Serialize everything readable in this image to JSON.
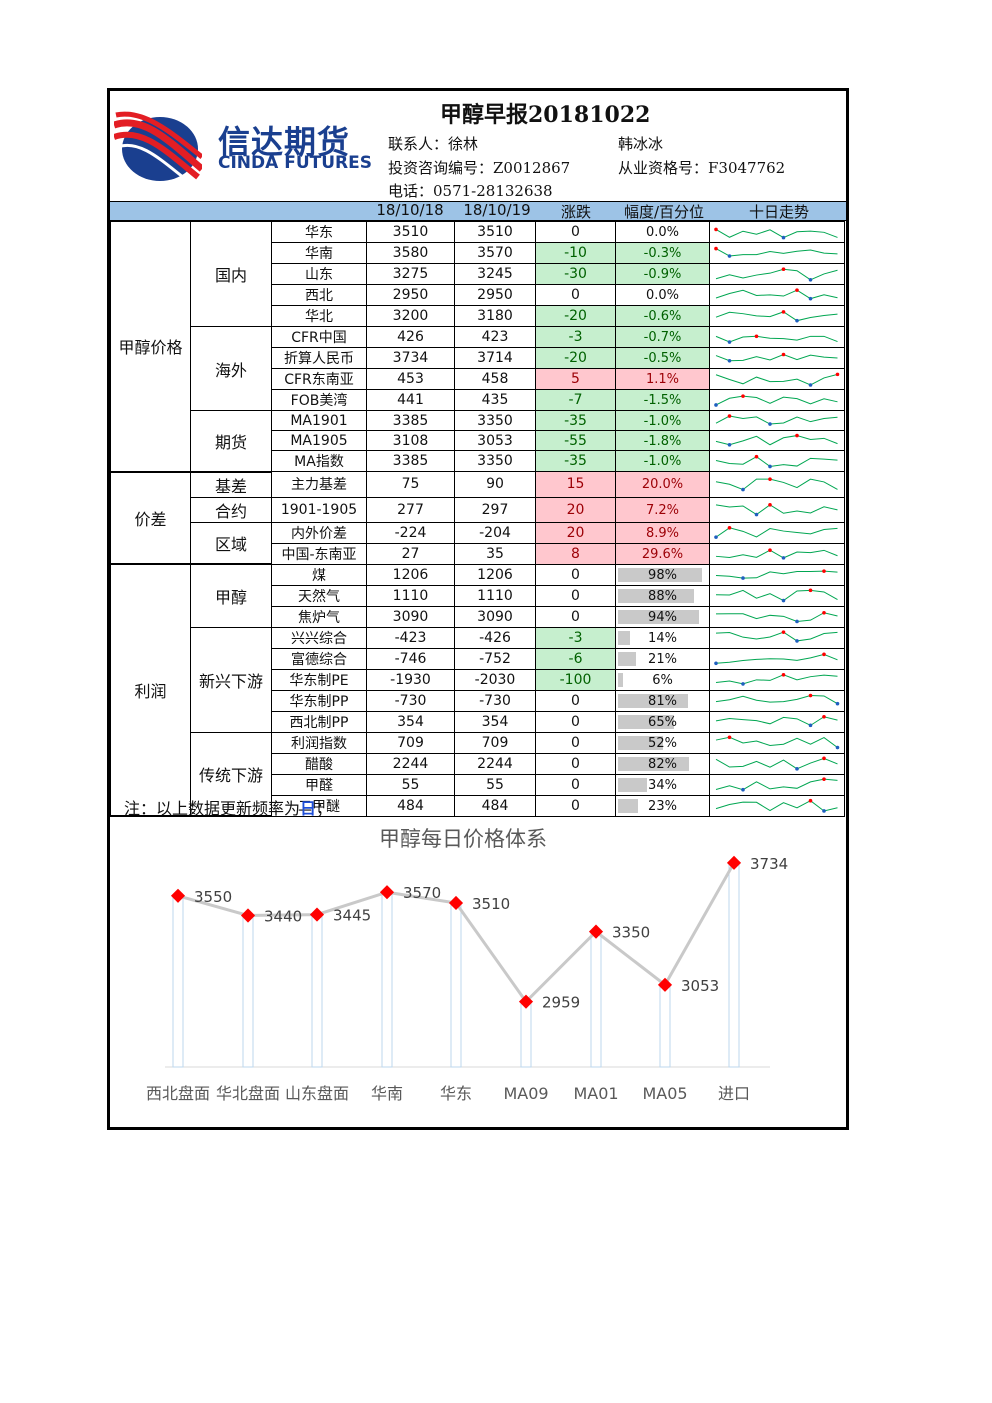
{
  "header": {
    "title": "甲醇早报20181022",
    "brand_cn": "信达期货",
    "brand_en": "CINDA FUTURES",
    "contact": "联系人：徐林",
    "contact2": "韩冰冰",
    "cert1": "投资咨询编号：Z0012867",
    "cert2": "从业资格号：F3047762",
    "phone": "电话：0571-28132638"
  },
  "columns": {
    "date1": "18/10/18",
    "date2": "18/10/19",
    "change": "涨跌",
    "pct": "幅度/百分位",
    "trend": "十日走势"
  },
  "groups": {
    "price": "甲醇价格",
    "spread": "价差",
    "profit": "利润",
    "domestic": "国内",
    "overseas": "海外",
    "futures": "期货",
    "basis": "基差",
    "contract": "合约",
    "region": "区域",
    "methanol": "甲醇",
    "new_down": "新兴下游",
    "trad_down": "传统下游"
  },
  "rows": [
    {
      "name": "华东",
      "v1": "3510",
      "v2": "3510",
      "chg": "0",
      "pct": "0.0%",
      "color": "",
      "bar": null
    },
    {
      "name": "华南",
      "v1": "3580",
      "v2": "3570",
      "chg": "-10",
      "pct": "-0.3%",
      "color": "g",
      "bar": null
    },
    {
      "name": "山东",
      "v1": "3275",
      "v2": "3245",
      "chg": "-30",
      "pct": "-0.9%",
      "color": "g",
      "bar": null
    },
    {
      "name": "西北",
      "v1": "2950",
      "v2": "2950",
      "chg": "0",
      "pct": "0.0%",
      "color": "",
      "bar": null
    },
    {
      "name": "华北",
      "v1": "3200",
      "v2": "3180",
      "chg": "-20",
      "pct": "-0.6%",
      "color": "g",
      "bar": null
    },
    {
      "name": "CFR中国",
      "v1": "426",
      "v2": "423",
      "chg": "-3",
      "pct": "-0.7%",
      "color": "g",
      "bar": null
    },
    {
      "name": "折算人民币",
      "v1": "3734",
      "v2": "3714",
      "chg": "-20",
      "pct": "-0.5%",
      "color": "g",
      "bar": null
    },
    {
      "name": "CFR东南亚",
      "v1": "453",
      "v2": "458",
      "chg": "5",
      "pct": "1.1%",
      "color": "r",
      "bar": null
    },
    {
      "name": "FOB美湾",
      "v1": "441",
      "v2": "435",
      "chg": "-7",
      "pct": "-1.5%",
      "color": "g",
      "bar": null
    },
    {
      "name": "MA1901",
      "v1": "3385",
      "v2": "3350",
      "chg": "-35",
      "pct": "-1.0%",
      "color": "g",
      "bar": null
    },
    {
      "name": "MA1905",
      "v1": "3108",
      "v2": "3053",
      "chg": "-55",
      "pct": "-1.8%",
      "color": "g",
      "bar": null
    },
    {
      "name": "MA指数",
      "v1": "3385",
      "v2": "3350",
      "chg": "-35",
      "pct": "-1.0%",
      "color": "g",
      "bar": null
    },
    {
      "name": "主力基差",
      "v1": "75",
      "v2": "90",
      "chg": "15",
      "pct": "20.0%",
      "color": "r",
      "bar": null
    },
    {
      "name": "1901-1905",
      "v1": "277",
      "v2": "297",
      "chg": "20",
      "pct": "7.2%",
      "color": "r",
      "bar": null
    },
    {
      "name": "内外价差",
      "v1": "-224",
      "v2": "-204",
      "chg": "20",
      "pct": "8.9%",
      "color": "r",
      "bar": null
    },
    {
      "name": "中国-东南亚",
      "v1": "27",
      "v2": "35",
      "chg": "8",
      "pct": "29.6%",
      "color": "r",
      "bar": null
    },
    {
      "name": "煤",
      "v1": "1206",
      "v2": "1206",
      "chg": "0",
      "pct": "98%",
      "color": "",
      "bar": 0.98
    },
    {
      "name": "天然气",
      "v1": "1110",
      "v2": "1110",
      "chg": "0",
      "pct": "88%",
      "color": "",
      "bar": 0.88
    },
    {
      "name": "焦炉气",
      "v1": "3090",
      "v2": "3090",
      "chg": "0",
      "pct": "94%",
      "color": "",
      "bar": 0.94
    },
    {
      "name": "兴兴综合",
      "v1": "-423",
      "v2": "-426",
      "chg": "-3",
      "pct": "14%",
      "color": "g",
      "bar": 0.14
    },
    {
      "name": "富德综合",
      "v1": "-746",
      "v2": "-752",
      "chg": "-6",
      "pct": "21%",
      "color": "g",
      "bar": 0.21
    },
    {
      "name": "华东制PE",
      "v1": "-1930",
      "v2": "-2030",
      "chg": "-100",
      "pct": "6%",
      "color": "g",
      "bar": 0.06
    },
    {
      "name": "华东制PP",
      "v1": "-730",
      "v2": "-730",
      "chg": "0",
      "pct": "81%",
      "color": "",
      "bar": 0.81
    },
    {
      "name": "西北制PP",
      "v1": "354",
      "v2": "354",
      "chg": "0",
      "pct": "65%",
      "color": "",
      "bar": 0.65
    },
    {
      "name": "利润指数",
      "v1": "709",
      "v2": "709",
      "chg": "0",
      "pct": "52%",
      "color": "",
      "bar": 0.52
    },
    {
      "name": "醋酸",
      "v1": "2244",
      "v2": "2244",
      "chg": "0",
      "pct": "82%",
      "color": "",
      "bar": 0.82
    },
    {
      "name": "甲醛",
      "v1": "55",
      "v2": "55",
      "chg": "0",
      "pct": "34%",
      "color": "",
      "bar": 0.34
    },
    {
      "name": "二甲醚",
      "v1": "484",
      "v2": "484",
      "chg": "0",
      "pct": "23%",
      "color": "",
      "bar": 0.23
    }
  ],
  "note": {
    "prefix": "注：以上数据更新频率为",
    "day": "日",
    "suffix": "；"
  },
  "chart_data": {
    "type": "line",
    "title": "甲醇每日价格体系",
    "categories": [
      "西北盘面",
      "华北盘面",
      "山东盘面",
      "华南",
      "华东",
      "MA09",
      "MA01",
      "MA05",
      "进口"
    ],
    "values": [
      3550,
      3440,
      3445,
      3570,
      3510,
      2959,
      3350,
      3053,
      3734
    ],
    "line_color": "#c9c9c9",
    "marker_color": "#ff0000",
    "drop_line_color": "#bdd7ee"
  },
  "colors": {
    "header_bar": "#9dc3e6",
    "down_bg": "#c6efce",
    "up_bg": "#ffc7ce",
    "brand": "#1a3f8f",
    "spark_line": "#00a651",
    "spark_high": "#ff0000",
    "spark_low": "#1f5fbf"
  }
}
